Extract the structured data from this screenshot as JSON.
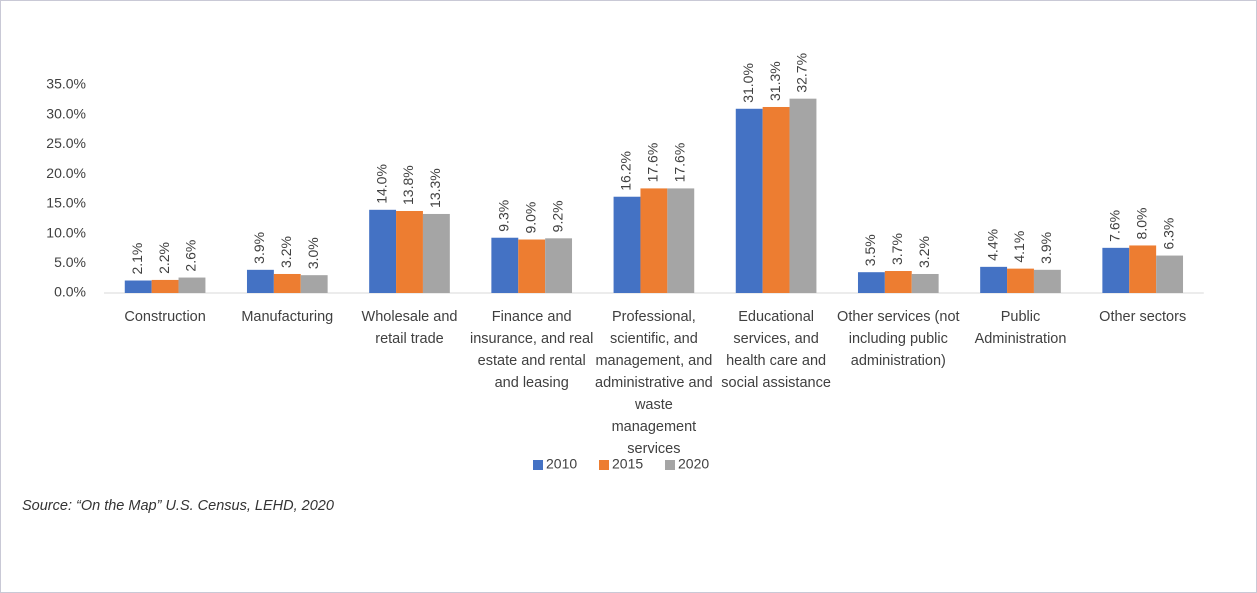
{
  "chart_data": {
    "type": "bar",
    "categories": [
      "Construction",
      "Manufacturing",
      "Wholesale and retail trade",
      "Finance and insurance, and real estate and rental and leasing",
      "Professional, scientific, and management, and administrative and waste management services",
      "Educational services, and health care and social assistance",
      "Other services (not including public administration)",
      "Public Administration",
      "Other sectors"
    ],
    "series": [
      {
        "name": "2010",
        "color": "#4472c4",
        "values": [
          2.1,
          3.9,
          14.0,
          9.3,
          16.2,
          31.0,
          3.5,
          4.4,
          7.6
        ],
        "value_labels": [
          "2.1%",
          "3.9%",
          "14.0%",
          "9.3%",
          "16.2%",
          "31.0%",
          "3.5%",
          "4.4%",
          "7.6%"
        ]
      },
      {
        "name": "2015",
        "color": "#ed7d31",
        "values": [
          2.2,
          3.2,
          13.8,
          9.0,
          17.6,
          31.3,
          3.7,
          4.1,
          8.0
        ],
        "value_labels": [
          "2.2%",
          "3.2%",
          "13.8%",
          "9.0%",
          "17.6%",
          "31.3%",
          "3.7%",
          "4.1%",
          "8.0%"
        ]
      },
      {
        "name": "2020",
        "color": "#a5a5a5",
        "values": [
          2.6,
          3.0,
          13.3,
          9.2,
          17.6,
          32.7,
          3.2,
          3.9,
          6.3
        ],
        "value_labels": [
          "2.6%",
          "3.0%",
          "13.3%",
          "9.2%",
          "17.6%",
          "32.7%",
          "3.2%",
          "3.9%",
          "6.3%"
        ]
      }
    ],
    "ylim": [
      0,
      35
    ],
    "yticks": [
      {
        "value": 0,
        "label": "0.0%"
      },
      {
        "value": 5,
        "label": "5.0%"
      },
      {
        "value": 10,
        "label": "10.0%"
      },
      {
        "value": 15,
        "label": "15.0%"
      },
      {
        "value": 20,
        "label": "20.0%"
      },
      {
        "value": 25,
        "label": "25.0%"
      },
      {
        "value": 30,
        "label": "30.0%"
      },
      {
        "value": 35,
        "label": "35.0%"
      }
    ],
    "grid": false,
    "legend": "bottom",
    "source": "Source: “On the Map” U.S. Census, LEHD, 2020"
  }
}
